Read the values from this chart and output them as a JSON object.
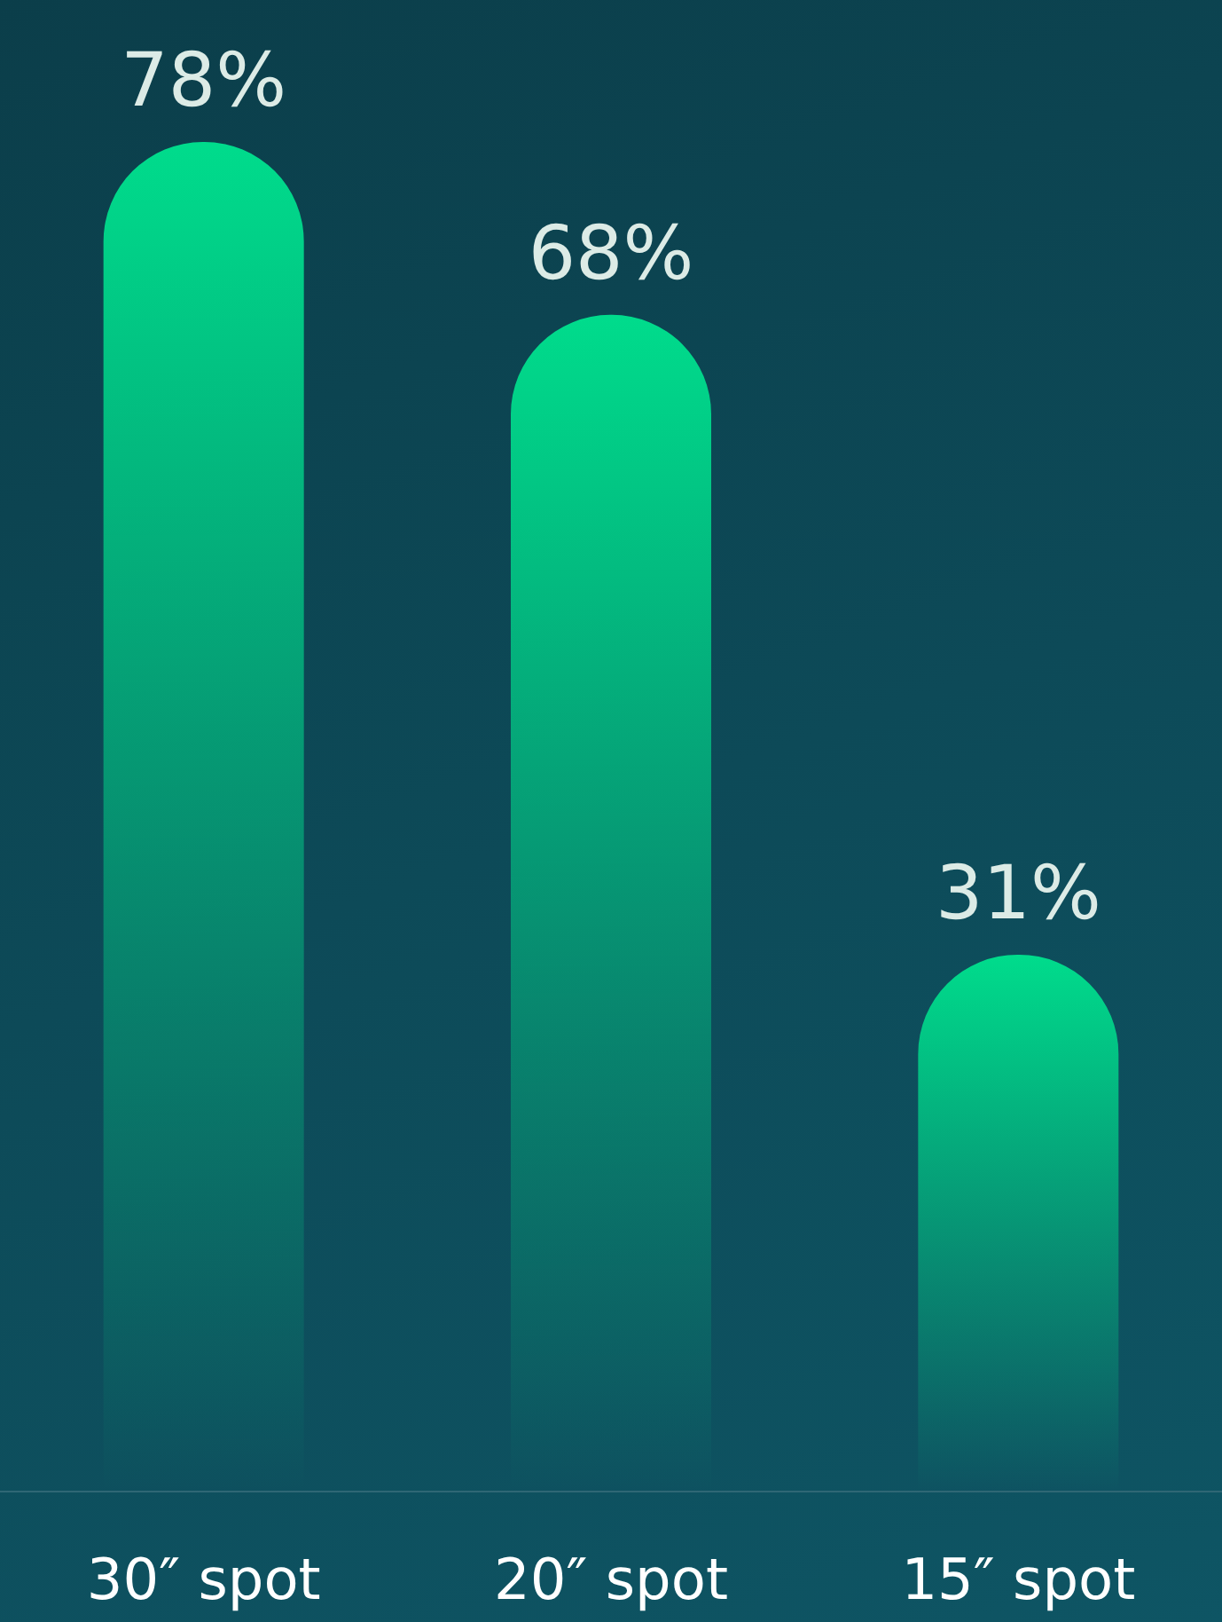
{
  "chart_data": {
    "type": "bar",
    "categories": [
      "30″ spot",
      "20″ spot",
      "15″ spot"
    ],
    "values": [
      78,
      68,
      31
    ],
    "value_labels": [
      "78%",
      "68%",
      "31%"
    ],
    "color": "#00dc8c"
  }
}
